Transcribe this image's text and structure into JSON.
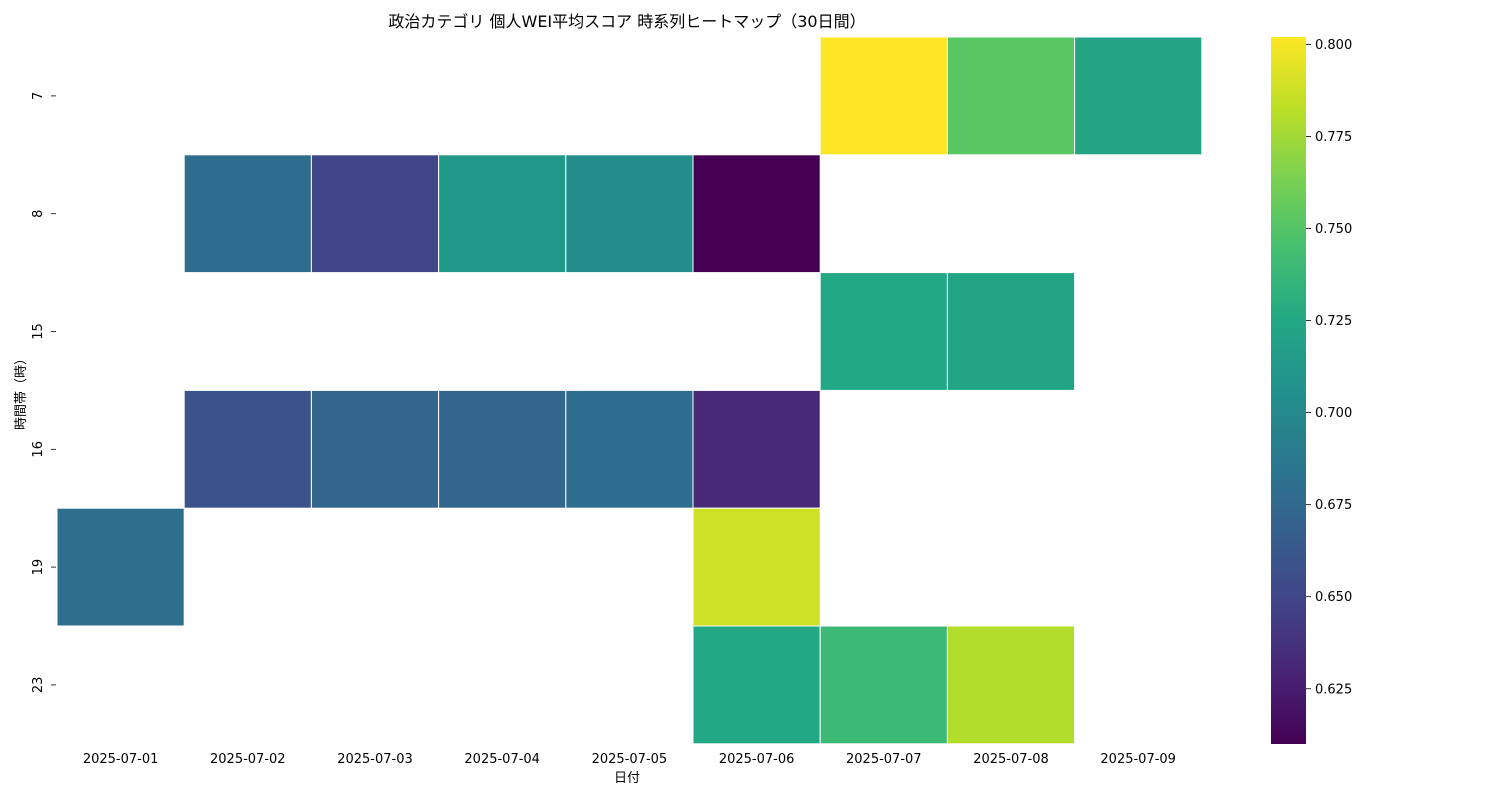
{
  "chart_data": {
    "type": "heatmap",
    "title": "政治カテゴリ 個人WEI平均スコア 時系列ヒートマップ（30日間）",
    "xlabel": "日付",
    "ylabel": "時間帯（時）",
    "x_categories": [
      "2025-07-01",
      "2025-07-02",
      "2025-07-03",
      "2025-07-04",
      "2025-07-05",
      "2025-07-06",
      "2025-07-07",
      "2025-07-08",
      "2025-07-09"
    ],
    "y_categories": [
      "7",
      "8",
      "15",
      "16",
      "19",
      "23"
    ],
    "values": [
      [
        null,
        null,
        null,
        null,
        null,
        null,
        0.802,
        0.752,
        0.722
      ],
      [
        null,
        0.678,
        0.65,
        0.713,
        0.703,
        0.61,
        null,
        null,
        null
      ],
      [
        null,
        null,
        null,
        null,
        null,
        null,
        0.725,
        0.723,
        null
      ],
      [
        null,
        0.66,
        0.673,
        0.673,
        0.678,
        0.632,
        null,
        null,
        null
      ],
      [
        0.68,
        null,
        null,
        null,
        null,
        0.788,
        null,
        null,
        null
      ],
      [
        null,
        null,
        null,
        null,
        null,
        0.725,
        0.74,
        0.78,
        null
      ]
    ],
    "colormap": "viridis",
    "colorbar": {
      "vmin": 0.61,
      "vmax": 0.802,
      "ticks": [
        0.625,
        0.65,
        0.675,
        0.7,
        0.725,
        0.75,
        0.775,
        0.8
      ],
      "tick_labels": [
        "0.625",
        "0.650",
        "0.675",
        "0.700",
        "0.725",
        "0.750",
        "0.775",
        "0.800"
      ]
    }
  }
}
